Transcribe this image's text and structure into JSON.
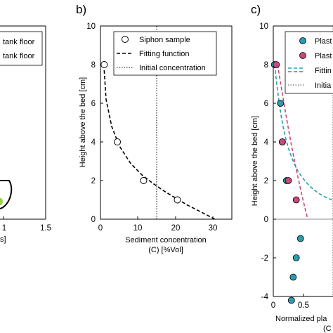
{
  "figure": {
    "panel_a": {
      "x_ticks": [
        "1",
        "1.5"
      ],
      "x_axis_fragment": "s]",
      "legend": [
        "tank floor",
        "tank floor"
      ]
    },
    "panel_b": {
      "letter": "b)",
      "ylabel": "Height above the bed [cm]",
      "xlabel_line1": "Sediment concentration",
      "xlabel_line2": "(C) [%Vol]",
      "x_ticks": [
        "0",
        "10",
        "20",
        "30"
      ],
      "y_ticks": [
        "0",
        "2",
        "4",
        "6",
        "8",
        "10"
      ],
      "legend": [
        "Siphon sample",
        "Fitting function",
        "Initial concentration"
      ]
    },
    "panel_c": {
      "letter": "c)",
      "ylabel": "Height above the bed [cm]",
      "xlabel_line1": "Normalized pla",
      "xlabel_line2": "(C",
      "x_ticks": [
        "0",
        "0.5"
      ],
      "y_ticks": [
        "-4",
        "-2",
        "0",
        "2",
        "4",
        "6",
        "8",
        "10"
      ],
      "legend": [
        "Plast",
        "Plast",
        "Fittin",
        "Initia"
      ]
    }
  },
  "chart_data": [
    {
      "panel": "a",
      "type": "line",
      "xlim": [
        0,
        1.5
      ],
      "x_ticks": [
        1,
        1.5
      ],
      "legend_entries": [
        "tank floor",
        "tank floor"
      ]
    },
    {
      "panel": "b",
      "type": "scatter",
      "xlabel": "Sediment concentration (C) [%Vol]",
      "ylabel": "Height above the bed [cm]",
      "xlim": [
        0,
        35
      ],
      "ylim": [
        0,
        10
      ],
      "series": [
        {
          "name": "Siphon sample",
          "style": "open-circle",
          "x": [
            1.0,
            4.5,
            11.5,
            20.5
          ],
          "y": [
            8.0,
            4.0,
            2.0,
            1.0
          ]
        },
        {
          "name": "Fitting function",
          "style": "dashed-line",
          "x": [
            0.9,
            1.5,
            3.0,
            5.0,
            8.0,
            11.0,
            14.0,
            17.0,
            20.0,
            23.0,
            26.0,
            28.5,
            30.5
          ],
          "y": [
            8.0,
            6.2,
            4.8,
            3.8,
            2.9,
            2.3,
            1.85,
            1.45,
            1.1,
            0.75,
            0.45,
            0.2,
            0.0
          ]
        },
        {
          "name": "Initial concentration",
          "style": "dotted-line",
          "x": [
            15,
            15
          ],
          "y": [
            0,
            10
          ]
        }
      ],
      "grid": false,
      "legend_position": "top-right"
    },
    {
      "panel": "c",
      "type": "scatter",
      "xlabel": "Normalized pla… (C…",
      "ylabel": "Height above the bed [cm]",
      "ylim": [
        -4,
        10
      ],
      "x_ticks": [
        0,
        0.5
      ],
      "series": [
        {
          "name": "Plast",
          "color": "#2c9bb0",
          "x": [
            0.02,
            0.12,
            0.15,
            0.22,
            0.45,
            0.38,
            0.33,
            0.3
          ],
          "y": [
            8.0,
            6.0,
            4.0,
            2.0,
            -1.0,
            -2.0,
            -3.0,
            -4.2
          ]
        },
        {
          "name": "Plast",
          "color": "#c84a7d",
          "x": [
            0.05,
            0.15,
            0.25,
            0.38
          ],
          "y": [
            8.0,
            4.0,
            2.0,
            1.0
          ]
        },
        {
          "name": "Fittin",
          "style": "dashed",
          "color": "#2c9bb0"
        },
        {
          "name": "Fittin",
          "style": "dashed",
          "color": "#c84a7d"
        },
        {
          "name": "Initia",
          "style": "dotted",
          "color": "#444444"
        }
      ],
      "zero_line": true,
      "grid": false,
      "legend_position": "top-right"
    }
  ]
}
